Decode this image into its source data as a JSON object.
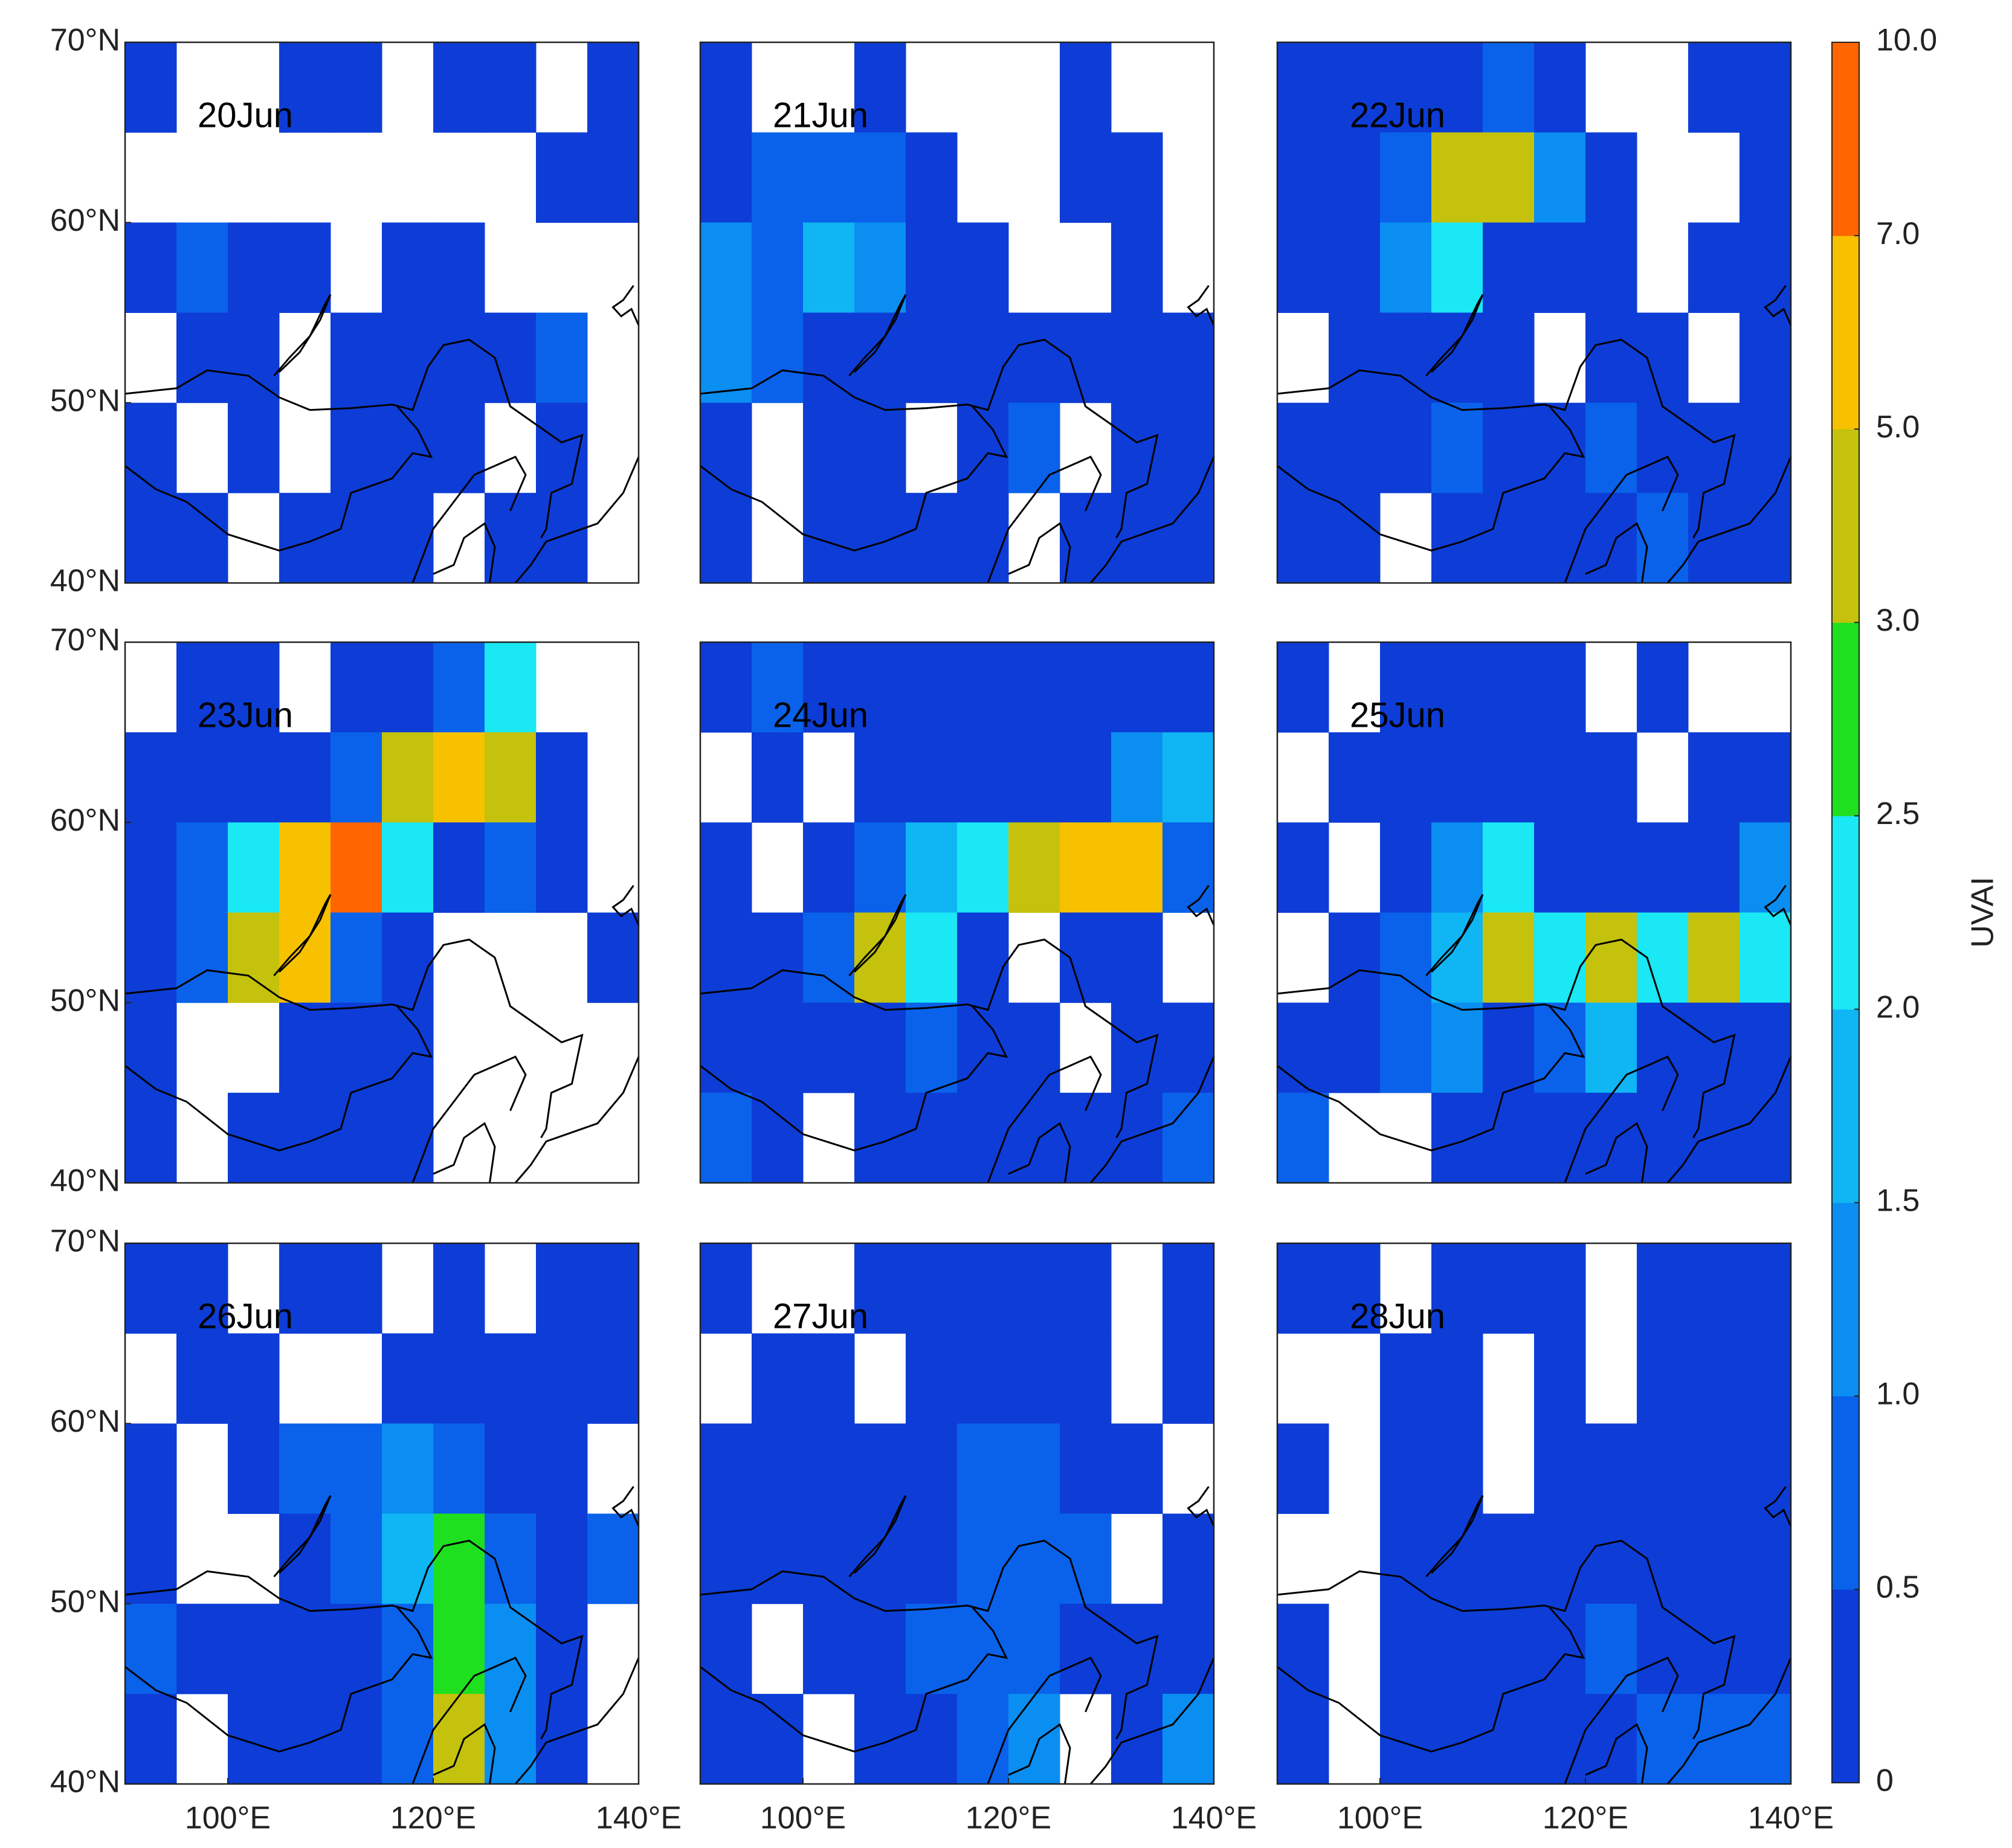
{
  "chart_data": {
    "type": "heatmap",
    "xlim": [
      90,
      140
    ],
    "ylim": [
      40,
      70
    ],
    "xticks": [
      {
        "value": 100,
        "label": "100°E"
      },
      {
        "value": 120,
        "label": "120°E"
      },
      {
        "value": 140,
        "label": "140°E"
      }
    ],
    "yticks": [
      {
        "value": 40,
        "label": "40°N"
      },
      {
        "value": 50,
        "label": "50°N"
      },
      {
        "value": 60,
        "label": "60°N"
      },
      {
        "value": 70,
        "label": "70°N"
      }
    ],
    "colorbar": {
      "label": "UVAI",
      "ticks": [
        0,
        {
          "value": 0.5,
          "label": "0.5"
        },
        {
          "value": 1,
          "label": "1.0"
        },
        {
          "value": 1.5,
          "label": "1.5"
        },
        {
          "value": 2,
          "label": "2.0"
        },
        {
          "value": 2.5,
          "label": "2.5"
        },
        {
          "value": 3,
          "label": "3.0"
        },
        {
          "value": 5,
          "label": "5.0"
        },
        {
          "value": 7,
          "label": "7.0"
        },
        {
          "value": 10,
          "label": "10.0"
        }
      ],
      "colors": [
        "#0d3dd6",
        "#0a62ea",
        "#0b8ef2",
        "#10b5f4",
        "#1ae8f4",
        "#1fe01f",
        "#c4c20c",
        "#f8c100",
        "#ff6500"
      ]
    },
    "panels": [
      {
        "title": "20Jun",
        "values": [
          [
            0.3,
            null,
            null,
            0.3,
            0.3,
            null,
            0.3,
            0.3,
            null,
            0.3
          ],
          [
            null,
            null,
            null,
            null,
            null,
            null,
            null,
            null,
            0.3,
            0.3
          ],
          [
            0.3,
            0.6,
            0.3,
            0.3,
            null,
            0.3,
            0.3,
            null,
            null,
            null
          ],
          [
            null,
            0.3,
            0.3,
            null,
            0.3,
            0.3,
            0.3,
            0.3,
            0.8,
            null
          ],
          [
            0.3,
            null,
            0.3,
            null,
            0.3,
            0.3,
            0.3,
            null,
            0.3,
            null
          ],
          [
            0.3,
            0.3,
            null,
            0.3,
            0.3,
            0.3,
            null,
            0.3,
            0.3,
            null
          ]
        ]
      },
      {
        "title": "21Jun",
        "values": [
          [
            0.3,
            null,
            null,
            0.3,
            null,
            null,
            null,
            0.3,
            null,
            null
          ],
          [
            0.3,
            0.6,
            0.8,
            0.8,
            0.3,
            null,
            null,
            0.3,
            0.3,
            null
          ],
          [
            1.2,
            0.6,
            1.7,
            1.2,
            0.3,
            0.3,
            null,
            null,
            0.3,
            null
          ],
          [
            1.2,
            0.8,
            0.3,
            0.3,
            0.3,
            0.3,
            0.3,
            0.3,
            0.3,
            0.3
          ],
          [
            0.3,
            null,
            0.3,
            0.3,
            null,
            0.3,
            0.6,
            null,
            0.3,
            0.3
          ],
          [
            0.3,
            null,
            0.3,
            0.3,
            0.3,
            0.3,
            null,
            0.3,
            0.3,
            0.3
          ]
        ]
      },
      {
        "title": "22Jun",
        "values": [
          [
            0.3,
            0.3,
            0.3,
            0.3,
            0.6,
            0.3,
            null,
            null,
            0.3,
            0.3
          ],
          [
            0.3,
            0.3,
            0.8,
            4,
            4,
            1.2,
            0.3,
            null,
            null,
            0.3
          ],
          [
            0.3,
            0.3,
            1.2,
            2.2,
            0.3,
            0.3,
            0.3,
            null,
            0.3,
            0.3
          ],
          [
            null,
            0.3,
            0.3,
            0.3,
            0.3,
            null,
            0.3,
            0.3,
            null,
            0.3
          ],
          [
            0.3,
            0.3,
            0.3,
            0.6,
            0.3,
            0.3,
            0.6,
            0.3,
            0.3,
            0.3
          ],
          [
            0.3,
            0.3,
            null,
            0.3,
            0.3,
            0.3,
            0.3,
            0.6,
            0.3,
            0.3
          ]
        ]
      },
      {
        "title": "23Jun",
        "values": [
          [
            null,
            0.3,
            0.3,
            null,
            0.3,
            0.3,
            0.8,
            2.2,
            null,
            null
          ],
          [
            0.3,
            0.3,
            0.3,
            0.3,
            0.6,
            4,
            6,
            4,
            0.3,
            null
          ],
          [
            0.3,
            0.8,
            2.2,
            6,
            8,
            2.2,
            0.3,
            0.8,
            0.3,
            null
          ],
          [
            0.3,
            0.8,
            4,
            6,
            0.8,
            0.3,
            null,
            null,
            null,
            0.3
          ],
          [
            0.3,
            null,
            null,
            0.3,
            0.3,
            0.3,
            null,
            null,
            null,
            null
          ],
          [
            0.3,
            null,
            0.3,
            0.3,
            0.3,
            0.3,
            null,
            null,
            null,
            null
          ]
        ]
      },
      {
        "title": "24Jun",
        "values": [
          [
            0.3,
            0.6,
            0.3,
            0.3,
            0.3,
            0.3,
            0.3,
            0.3,
            0.3,
            0.3
          ],
          [
            null,
            0.3,
            null,
            0.3,
            0.3,
            0.3,
            0.3,
            0.3,
            1.2,
            1.7
          ],
          [
            0.3,
            null,
            0.3,
            0.6,
            1.7,
            2.2,
            4,
            6,
            6,
            0.8
          ],
          [
            0.3,
            0.3,
            0.6,
            4,
            2.2,
            0.3,
            null,
            0.3,
            0.3,
            null
          ],
          [
            0.3,
            0.3,
            0.3,
            0.3,
            0.6,
            0.3,
            0.3,
            null,
            0.3,
            0.3
          ],
          [
            0.6,
            0.3,
            null,
            0.3,
            0.3,
            0.3,
            0.3,
            0.3,
            0.3,
            0.6
          ]
        ]
      },
      {
        "title": "25Jun",
        "values": [
          [
            0.3,
            null,
            0.3,
            0.3,
            0.3,
            0.3,
            null,
            0.3,
            null,
            null
          ],
          [
            null,
            0.3,
            0.3,
            0.3,
            0.3,
            0.3,
            0.3,
            null,
            0.3,
            0.3
          ],
          [
            0.3,
            null,
            0.3,
            1.2,
            2.2,
            0.3,
            0.3,
            0.3,
            0.3,
            1.2
          ],
          [
            null,
            0.3,
            0.6,
            1.7,
            4,
            2.2,
            4,
            2.2,
            4,
            2.2
          ],
          [
            0.3,
            0.3,
            0.6,
            1.2,
            0.3,
            0.6,
            1.7,
            0.3,
            0.3,
            0.3
          ],
          [
            0.8,
            null,
            null,
            0.3,
            0.3,
            0.3,
            0.3,
            0.3,
            0.3,
            0.3
          ]
        ]
      },
      {
        "title": "26Jun",
        "values": [
          [
            0.3,
            0.3,
            null,
            0.3,
            0.3,
            null,
            0.3,
            null,
            0.3,
            0.3
          ],
          [
            null,
            0.3,
            0.3,
            null,
            null,
            0.3,
            0.3,
            0.3,
            0.3,
            0.3
          ],
          [
            0.3,
            null,
            0.3,
            0.6,
            0.8,
            1.2,
            0.8,
            0.3,
            0.3,
            null
          ],
          [
            0.3,
            null,
            null,
            0.3,
            0.8,
            1.7,
            2.6,
            0.8,
            0.3,
            0.6
          ],
          [
            0.8,
            0.3,
            0.3,
            0.3,
            0.3,
            0.8,
            2.8,
            1.2,
            0.3,
            null
          ],
          [
            0.3,
            null,
            0.3,
            0.3,
            0.3,
            0.6,
            4,
            1.2,
            0.3,
            null
          ]
        ]
      },
      {
        "title": "27Jun",
        "values": [
          [
            0.3,
            null,
            null,
            0.3,
            0.3,
            0.3,
            0.3,
            0.3,
            null,
            0.3
          ],
          [
            null,
            0.3,
            0.3,
            null,
            0.3,
            0.3,
            0.3,
            0.3,
            null,
            0.3
          ],
          [
            0.3,
            0.3,
            0.3,
            0.3,
            0.3,
            0.6,
            0.6,
            0.3,
            0.3,
            null
          ],
          [
            0.3,
            0.3,
            0.3,
            0.3,
            0.3,
            0.6,
            0.6,
            0.8,
            null,
            0.3
          ],
          [
            0.3,
            null,
            0.3,
            0.3,
            0.6,
            0.6,
            0.8,
            0.3,
            0.3,
            0.3
          ],
          [
            0.3,
            0.3,
            null,
            0.3,
            0.3,
            0.8,
            1.2,
            null,
            0.3,
            1.2
          ]
        ]
      },
      {
        "title": "28Jun",
        "values": [
          [
            0.3,
            0.3,
            null,
            0.3,
            0.3,
            0.3,
            null,
            0.3,
            0.3,
            0.3
          ],
          [
            null,
            null,
            0.3,
            0.3,
            null,
            0.3,
            null,
            0.3,
            0.3,
            0.3
          ],
          [
            0.3,
            null,
            0.3,
            0.3,
            null,
            0.3,
            0.3,
            0.3,
            0.3,
            0.3
          ],
          [
            null,
            null,
            0.3,
            0.3,
            0.3,
            0.3,
            0.3,
            0.3,
            0.3,
            0.3
          ],
          [
            0.3,
            null,
            0.3,
            0.3,
            0.3,
            0.3,
            0.6,
            0.3,
            0.3,
            0.3
          ],
          [
            0.3,
            null,
            0.3,
            0.3,
            0.3,
            0.3,
            0.3,
            0.6,
            0.8,
            0.6
          ]
        ]
      }
    ]
  }
}
